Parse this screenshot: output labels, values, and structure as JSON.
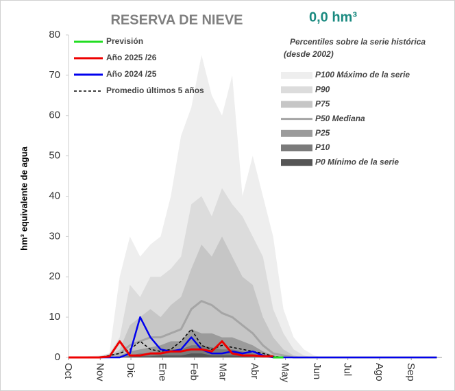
{
  "chart_data": {
    "type": "line",
    "title": "RESERVA DE NIEVE",
    "subtitle": "0,0 hm³",
    "ylabel": "hm³ equivalente de agua",
    "legend_title": "Percentiles sobre la serie histórica",
    "legend_subtitle": "(desde 2002)",
    "xlim": [
      0,
      365
    ],
    "ylim": [
      0,
      80
    ],
    "yticks": [
      0,
      10,
      20,
      30,
      40,
      50,
      60,
      70,
      80
    ],
    "xticks": [
      {
        "value": 0,
        "label": "Oct"
      },
      {
        "value": 31,
        "label": "Nov"
      },
      {
        "value": 61,
        "label": "Dic"
      },
      {
        "value": 92,
        "label": "Ene"
      },
      {
        "value": 123,
        "label": "Feb"
      },
      {
        "value": 151,
        "label": "Mar"
      },
      {
        "value": 182,
        "label": "Abr"
      },
      {
        "value": 212,
        "label": "May"
      },
      {
        "value": 243,
        "label": "Jun"
      },
      {
        "value": 273,
        "label": "Jul"
      },
      {
        "value": 304,
        "label": "Ago"
      },
      {
        "value": 335,
        "label": "Sep"
      }
    ],
    "x": [
      0,
      10,
      20,
      30,
      40,
      50,
      60,
      70,
      80,
      90,
      100,
      110,
      120,
      130,
      140,
      150,
      160,
      170,
      180,
      190,
      200,
      210,
      220,
      230,
      240,
      250,
      260,
      270,
      280,
      290,
      300,
      310,
      320,
      330,
      340,
      350,
      360
    ],
    "series": [
      {
        "name": "P100 Máximo de la serie",
        "kind": "area",
        "legend": "right",
        "color": "#eeeeee",
        "values": [
          0,
          0,
          0.3,
          0.5,
          1,
          20,
          30,
          25,
          28,
          30,
          40,
          55,
          62,
          75,
          65,
          60,
          70,
          40,
          50,
          40,
          30,
          12,
          5,
          2,
          0.5,
          0,
          0,
          0,
          0,
          0,
          0,
          0,
          0,
          0,
          0,
          0,
          0
        ]
      },
      {
        "name": "P90",
        "kind": "area",
        "legend": "right",
        "color": "#dcdcdc",
        "values": [
          0,
          0,
          0,
          0.3,
          1,
          5,
          18,
          15,
          20,
          20,
          22,
          25,
          38,
          40,
          35,
          42,
          38,
          35,
          30,
          25,
          12,
          6,
          2,
          0.5,
          0,
          0,
          0,
          0,
          0,
          0,
          0,
          0,
          0,
          0,
          0,
          0,
          0
        ]
      },
      {
        "name": "P75",
        "kind": "area",
        "legend": "right",
        "color": "#c6c6c6",
        "values": [
          0,
          0,
          0,
          0,
          0.5,
          2,
          8,
          10,
          12,
          10,
          13,
          15,
          22,
          28,
          25,
          30,
          25,
          20,
          18,
          10,
          5,
          2,
          0.5,
          0,
          0,
          0,
          0,
          0,
          0,
          0,
          0,
          0,
          0,
          0,
          0,
          0,
          0
        ]
      },
      {
        "name": "P50 Mediana",
        "kind": "line",
        "legend": "right",
        "color": "#a5a5a5",
        "width": 3,
        "values": [
          0,
          0,
          0,
          0,
          0.3,
          1,
          3,
          4,
          5,
          5,
          6,
          7,
          12,
          14,
          13,
          11,
          10,
          8,
          6,
          3,
          1,
          0.5,
          0,
          0,
          0,
          0,
          0,
          0,
          0,
          0,
          0,
          0,
          0,
          0,
          0,
          0,
          0
        ]
      },
      {
        "name": "P25",
        "kind": "area",
        "legend": "right",
        "color": "#9b9b9b",
        "values": [
          0,
          0,
          0,
          0,
          0,
          0.5,
          1.5,
          2,
          2.5,
          3,
          4,
          4,
          7,
          6,
          6,
          5,
          5,
          4,
          3,
          1.5,
          0.5,
          0,
          0,
          0,
          0,
          0,
          0,
          0,
          0,
          0,
          0,
          0,
          0,
          0,
          0,
          0,
          0
        ]
      },
      {
        "name": "P10",
        "kind": "area",
        "legend": "right",
        "color": "#7b7b7b",
        "values": [
          0,
          0,
          0,
          0,
          0,
          0,
          0.5,
          1,
          1,
          1.5,
          2,
          2,
          3,
          3,
          2.5,
          2,
          2,
          1.5,
          1,
          0.5,
          0,
          0,
          0,
          0,
          0,
          0,
          0,
          0,
          0,
          0,
          0,
          0,
          0,
          0,
          0,
          0,
          0
        ]
      },
      {
        "name": "P0 Mínimo de la serie",
        "kind": "area",
        "legend": "right",
        "color": "#555555",
        "values": [
          0,
          0,
          0,
          0,
          0,
          0,
          0.2,
          0.3,
          0.3,
          0.5,
          0.5,
          0.5,
          1,
          1,
          0.5,
          0.5,
          0.5,
          0.3,
          0.2,
          0,
          0,
          0,
          0,
          0,
          0,
          0,
          0,
          0,
          0,
          0,
          0,
          0,
          0,
          0,
          0,
          0,
          0
        ]
      },
      {
        "name": "Promedio últimos 5 años",
        "kind": "line",
        "legend": "left",
        "dash": true,
        "color": "#000000",
        "width": 1.5,
        "values": [
          0,
          0,
          0,
          0,
          0.5,
          1,
          2,
          4,
          2,
          1.5,
          2,
          4,
          7,
          3,
          2,
          3,
          2.5,
          2,
          1.5,
          1,
          0.3,
          0,
          null,
          null,
          null,
          null,
          null,
          null,
          null,
          null,
          null,
          null,
          null,
          null,
          null,
          null,
          null
        ]
      },
      {
        "name": "Año 2024 /25",
        "kind": "line",
        "legend": "left",
        "color": "#0000ee",
        "width": 2.5,
        "values": [
          0,
          0,
          0,
          0,
          0,
          0,
          1,
          10,
          5,
          2,
          1.5,
          2,
          5,
          2,
          1,
          1,
          1.5,
          1,
          1.5,
          0.5,
          0,
          0,
          0,
          0,
          0,
          0,
          0,
          0,
          0,
          0,
          0,
          0,
          0,
          0,
          0,
          0,
          0
        ]
      },
      {
        "name": "Año 2025 /26",
        "kind": "line",
        "legend": "left",
        "color": "#ee0000",
        "width": 3,
        "values": [
          0,
          0,
          0,
          0,
          0.2,
          4,
          0.5,
          0.5,
          1,
          1,
          1.5,
          1.5,
          2,
          2,
          1.5,
          4,
          1,
          0.5,
          0.5,
          0.3,
          0.3,
          null,
          null,
          null,
          null,
          null,
          null,
          null,
          null,
          null,
          null,
          null,
          null,
          null,
          null,
          null,
          null
        ]
      },
      {
        "name": "Previsión",
        "kind": "line",
        "legend": "left",
        "color": "#22dd22",
        "width": 3,
        "values": [
          null,
          null,
          null,
          null,
          null,
          null,
          null,
          null,
          null,
          null,
          null,
          null,
          null,
          null,
          null,
          null,
          null,
          null,
          null,
          null,
          0,
          0,
          null,
          null,
          null,
          null,
          null,
          null,
          null,
          null,
          null,
          null,
          null,
          null,
          null,
          null,
          null
        ]
      }
    ]
  }
}
